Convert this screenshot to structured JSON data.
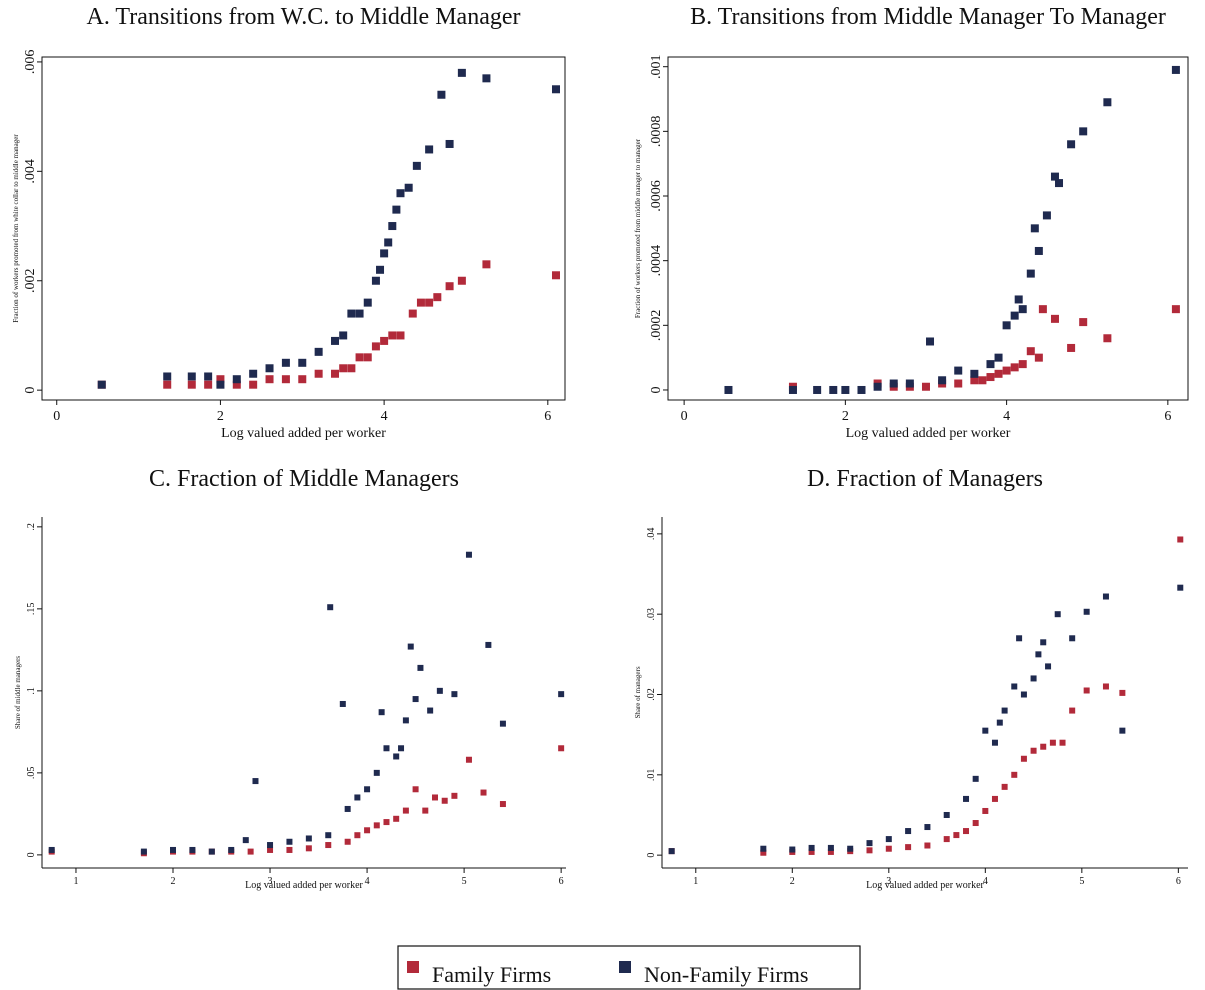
{
  "chart_data": [
    {
      "type": "scatter",
      "title": "A. Transitions from W.C. to Middle Manager",
      "xlabel": "Log valued added per worker",
      "ylabel": "Fraction of workers promoted from white collar to middle manager",
      "xlim": [
        -0.18,
        6.21
      ],
      "ylim": [
        -0.00018,
        0.00609
      ],
      "xticks": [
        0,
        2,
        4,
        6
      ],
      "yticks": [
        0,
        {
          "value": 0.002,
          "label": ".002"
        },
        {
          "value": 0.004,
          "label": ".004"
        },
        {
          "value": 0.006,
          "label": ".006"
        }
      ],
      "series": [
        {
          "name": "Family Firms",
          "color": "#b22a3a",
          "x": [
            0.55,
            1.35,
            1.65,
            1.85,
            2.0,
            2.2,
            2.4,
            2.6,
            2.8,
            3.0,
            3.2,
            3.4,
            3.5,
            3.6,
            3.7,
            3.8,
            3.9,
            4.0,
            4.1,
            4.2,
            4.35,
            4.45,
            4.55,
            4.65,
            4.8,
            4.95,
            5.25,
            6.1
          ],
          "values": [
            0.0001,
            0.0001,
            0.0001,
            0.0001,
            0.0002,
            0.0001,
            0.0001,
            0.0002,
            0.0002,
            0.0002,
            0.0003,
            0.0003,
            0.0004,
            0.0004,
            0.0006,
            0.0006,
            0.0008,
            0.0009,
            0.001,
            0.001,
            0.0014,
            0.0016,
            0.0016,
            0.0017,
            0.0019,
            0.002,
            0.0023,
            0.0021
          ]
        },
        {
          "name": "Non-Family Firms",
          "color": "#1f2a4f",
          "x": [
            0.55,
            1.35,
            1.65,
            1.85,
            2.0,
            2.2,
            2.4,
            2.6,
            2.8,
            3.0,
            3.2,
            3.4,
            3.5,
            3.6,
            3.7,
            3.8,
            3.9,
            3.95,
            4.0,
            4.05,
            4.1,
            4.15,
            4.2,
            4.3,
            4.4,
            4.55,
            4.7,
            4.8,
            4.95,
            5.25,
            6.1
          ],
          "values": [
            0.0001,
            0.00025,
            0.00025,
            0.00025,
            0.0001,
            0.0002,
            0.0003,
            0.0004,
            0.0005,
            0.0005,
            0.0007,
            0.0009,
            0.001,
            0.0014,
            0.0014,
            0.0016,
            0.002,
            0.0022,
            0.0025,
            0.0027,
            0.003,
            0.0033,
            0.0036,
            0.0037,
            0.0041,
            0.0044,
            0.0054,
            0.0045,
            0.0058,
            0.0057,
            0.0055
          ]
        }
      ]
    },
    {
      "type": "scatter",
      "title": "B. Transitions from Middle Manager To Manager",
      "xlabel": "Log valued added per worker",
      "ylabel": "Fraction of workers promoted from middle manager to manager",
      "xlim": [
        -0.2,
        6.25
      ],
      "ylim": [
        -3.1e-05,
        0.00103
      ],
      "xticks": [
        0,
        2,
        4,
        6
      ],
      "yticks": [
        0,
        {
          "value": 0.0002,
          "label": ".0002"
        },
        {
          "value": 0.0004,
          "label": ".0004"
        },
        {
          "value": 0.0006,
          "label": ".0006"
        },
        {
          "value": 0.0008,
          "label": ".0008"
        },
        {
          "value": 0.001,
          "label": ".001"
        }
      ],
      "series": [
        {
          "name": "Family Firms",
          "color": "#b22a3a",
          "x": [
            1.35,
            2.4,
            2.6,
            2.8,
            3.0,
            3.2,
            3.4,
            3.6,
            3.7,
            3.8,
            3.9,
            4.0,
            4.1,
            4.2,
            4.3,
            4.4,
            4.45,
            4.6,
            4.8,
            4.95,
            5.25,
            6.1
          ],
          "values": [
            1e-05,
            2e-05,
            1e-05,
            1e-05,
            1e-05,
            2e-05,
            2e-05,
            3e-05,
            3e-05,
            4e-05,
            5e-05,
            6e-05,
            7e-05,
            8e-05,
            0.00012,
            0.0001,
            0.00025,
            0.00022,
            0.00013,
            0.00021,
            0.00016,
            0.00025
          ]
        },
        {
          "name": "Non-Family Firms",
          "color": "#1f2a4f",
          "x": [
            0.55,
            1.35,
            1.65,
            1.85,
            2.0,
            2.2,
            2.4,
            2.6,
            2.8,
            3.05,
            3.2,
            3.4,
            3.6,
            3.8,
            3.9,
            4.0,
            4.1,
            4.15,
            4.2,
            4.3,
            4.35,
            4.4,
            4.5,
            4.6,
            4.65,
            4.8,
            4.95,
            5.25,
            6.1
          ],
          "values": [
            0,
            0,
            0,
            0,
            0,
            0,
            1e-05,
            2e-05,
            2e-05,
            0.00015,
            3e-05,
            6e-05,
            5e-05,
            8e-05,
            0.0001,
            0.0002,
            0.00023,
            0.00028,
            0.00025,
            0.00036,
            0.0005,
            0.00043,
            0.00054,
            0.00066,
            0.00064,
            0.00076,
            0.0008,
            0.00089,
            0.00099
          ]
        }
      ]
    },
    {
      "type": "scatter",
      "title": "C. Fraction of Middle Managers",
      "xlabel": "Log valued added per worker",
      "ylabel": "Share of middle managers",
      "xlim": [
        0.65,
        6.05
      ],
      "ylim": [
        -0.008,
        0.206
      ],
      "xticks": [
        1,
        2,
        3,
        4,
        5,
        6
      ],
      "yticks": [
        0,
        {
          "value": 0.05,
          "label": ".05"
        },
        {
          "value": 0.1,
          "label": ".1"
        },
        {
          "value": 0.15,
          "label": ".15"
        },
        {
          "value": 0.2,
          "label": ".2"
        }
      ],
      "series": [
        {
          "name": "Family Firms",
          "color": "#b22a3a",
          "x": [
            0.75,
            1.7,
            2.0,
            2.2,
            2.4,
            2.6,
            2.8,
            3.0,
            3.2,
            3.4,
            3.6,
            3.8,
            3.9,
            4.0,
            4.1,
            4.2,
            4.3,
            4.4,
            4.5,
            4.6,
            4.7,
            4.8,
            4.9,
            5.05,
            5.2,
            5.4,
            6.0
          ],
          "values": [
            0.002,
            0.001,
            0.002,
            0.002,
            0.002,
            0.002,
            0.002,
            0.003,
            0.003,
            0.004,
            0.006,
            0.008,
            0.012,
            0.015,
            0.018,
            0.02,
            0.022,
            0.027,
            0.04,
            0.027,
            0.035,
            0.033,
            0.036,
            0.058,
            0.038,
            0.031,
            0.065
          ]
        },
        {
          "name": "Non-Family Firms",
          "color": "#1f2a4f",
          "x": [
            0.75,
            1.7,
            2.0,
            2.2,
            2.4,
            2.6,
            2.75,
            2.85,
            3.0,
            3.2,
            3.4,
            3.6,
            3.62,
            3.75,
            3.8,
            3.9,
            4.0,
            4.1,
            4.15,
            4.2,
            4.3,
            4.35,
            4.4,
            4.45,
            4.5,
            4.55,
            4.65,
            4.75,
            4.9,
            5.05,
            5.25,
            5.4,
            6.0
          ],
          "values": [
            0.003,
            0.002,
            0.003,
            0.003,
            0.002,
            0.003,
            0.009,
            0.045,
            0.006,
            0.008,
            0.01,
            0.012,
            0.151,
            0.092,
            0.028,
            0.035,
            0.04,
            0.05,
            0.087,
            0.065,
            0.06,
            0.065,
            0.082,
            0.127,
            0.095,
            0.114,
            0.088,
            0.1,
            0.098,
            0.183,
            0.128,
            0.08,
            0.098
          ]
        }
      ]
    },
    {
      "type": "scatter",
      "title": "D. Fraction of Managers",
      "xlabel": "Log valued added per worker",
      "ylabel": "Share of managers",
      "xlim": [
        0.65,
        6.1
      ],
      "ylim": [
        -0.0016,
        0.0421
      ],
      "xticks": [
        1,
        2,
        3,
        4,
        5,
        6
      ],
      "yticks": [
        0,
        {
          "value": 0.01,
          "label": ".01"
        },
        {
          "value": 0.02,
          "label": ".02"
        },
        {
          "value": 0.03,
          "label": ".03"
        },
        {
          "value": 0.04,
          "label": ".04"
        }
      ],
      "series": [
        {
          "name": "Family Firms",
          "color": "#b22a3a",
          "x": [
            0.75,
            1.7,
            2.0,
            2.2,
            2.4,
            2.6,
            2.8,
            3.0,
            3.2,
            3.4,
            3.6,
            3.7,
            3.8,
            3.9,
            4.0,
            4.1,
            4.2,
            4.3,
            4.4,
            4.5,
            4.6,
            4.7,
            4.8,
            4.9,
            5.05,
            5.25,
            5.42,
            6.02
          ],
          "values": [
            0.0005,
            0.0003,
            0.0004,
            0.0004,
            0.0004,
            0.0005,
            0.0006,
            0.0008,
            0.001,
            0.0012,
            0.002,
            0.0025,
            0.003,
            0.004,
            0.0055,
            0.007,
            0.0085,
            0.01,
            0.012,
            0.013,
            0.0135,
            0.014,
            0.014,
            0.018,
            0.0205,
            0.021,
            0.0202,
            0.0393
          ]
        },
        {
          "name": "Non-Family Firms",
          "color": "#1f2a4f",
          "x": [
            0.75,
            1.7,
            2.0,
            2.2,
            2.4,
            2.6,
            2.8,
            3.0,
            3.2,
            3.4,
            3.6,
            3.8,
            3.9,
            4.0,
            4.1,
            4.15,
            4.2,
            4.3,
            4.35,
            4.4,
            4.5,
            4.55,
            4.6,
            4.65,
            4.75,
            4.9,
            5.05,
            5.25,
            5.42,
            6.02
          ],
          "values": [
            0.0005,
            0.0008,
            0.0007,
            0.0009,
            0.0009,
            0.0008,
            0.0015,
            0.002,
            0.003,
            0.0035,
            0.005,
            0.007,
            0.0095,
            0.0155,
            0.014,
            0.0165,
            0.018,
            0.021,
            0.027,
            0.02,
            0.022,
            0.025,
            0.0265,
            0.0235,
            0.03,
            0.027,
            0.0303,
            0.0322,
            0.0155,
            0.0333
          ]
        }
      ]
    }
  ]
}
